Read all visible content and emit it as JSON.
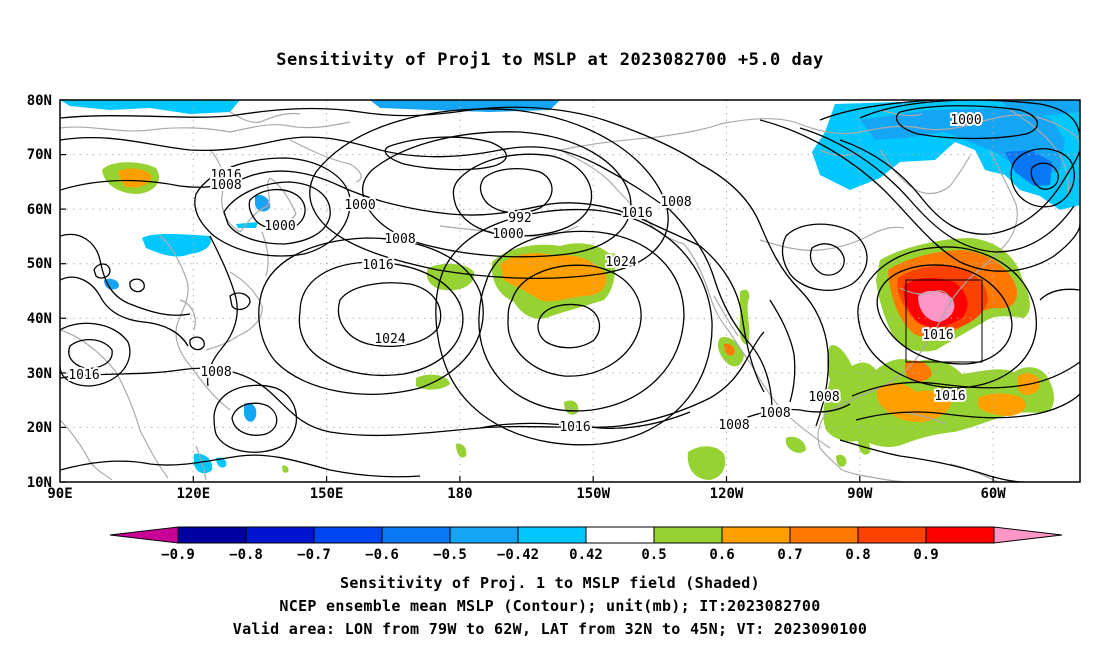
{
  "title": "Sensitivity of Proj1 to MSLP at 2023082700 +5.0 day",
  "map": {
    "lat_labels": [
      "80N",
      "70N",
      "60N",
      "50N",
      "40N",
      "30N",
      "20N",
      "10N"
    ],
    "lon_labels": [
      "90E",
      "120E",
      "150E",
      "180",
      "150W",
      "120W",
      "90W",
      "60W"
    ],
    "contour_labels": {
      "c1016_a": "1016",
      "c1008_a": "1008",
      "c1000_a": "1000",
      "c1000_b": "1000",
      "c992": "992",
      "c1000_c": "1000",
      "c1016_b": "1016",
      "c1008_b": "1008",
      "c1008_c": "1008",
      "c1016_c": "1016",
      "c1024_a": "1024",
      "c1024_b": "1024",
      "c1016_d": "1016",
      "c1008_d": "1008",
      "c1016_e": "1016",
      "c1008_e": "1008",
      "c1008_f": "1008",
      "c1008_g": "1008",
      "c1016_f": "1016",
      "c1016_g": "1016",
      "c1000_d": "1000"
    }
  },
  "colorbar": {
    "labels": [
      "−0.9",
      "−0.8",
      "−0.7",
      "−0.6",
      "−0.5",
      "−0.42",
      "0.42",
      "0.5",
      "0.6",
      "0.7",
      "0.8",
      "0.9"
    ],
    "colors": [
      "#0000a0",
      "#0014d2",
      "#0046f0",
      "#0a78f5",
      "#14a5f5",
      "#00c8ff",
      "#ffffff",
      "#96d232",
      "#ffa000",
      "#ff7800",
      "#ff4100",
      "#ff0000"
    ],
    "low_end_color": "#c80096",
    "high_end_color": "#ff96c8"
  },
  "captions": {
    "line1": "Sensitivity of Proj. 1 to MSLP field (Shaded)",
    "line2": "NCEP ensemble mean MSLP (Contour); unit(mb); IT:2023082700",
    "line3": "Valid area: LON from 79W to 62W, LAT from 32N to 45N; VT: 2023090100"
  }
}
